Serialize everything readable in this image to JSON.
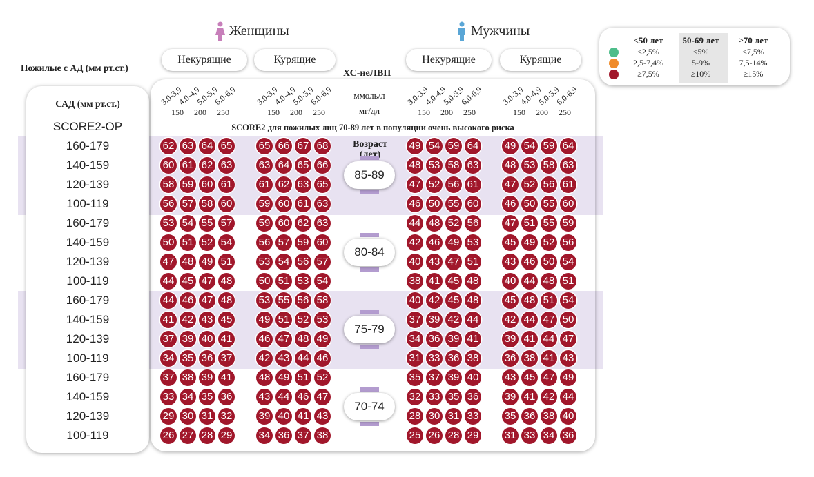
{
  "sex_labels": {
    "women": "Женщины",
    "men": "Мужчины"
  },
  "group_labels": {
    "nonsmoking": "Некурящие",
    "smoking": "Курящие"
  },
  "left_title": "Пожилые с АД (мм рт.ст.)",
  "left_header": "САД (мм рт.ст.)",
  "score_label": "SCORE2-OP",
  "chol_title": "ХС-неЛВП",
  "units": {
    "mmol": "ммоль/л",
    "mgdl": "мг/дл"
  },
  "chol_ticks": [
    "3,0-3,9",
    "4,0-4,9",
    "5,0-5,9",
    "6,0-6,9"
  ],
  "mgdl_ticks": [
    "150",
    "200",
    "250"
  ],
  "subtitle": "SCORE2 для пожилых лиц 70-89 лет в популяции очень высокого риска",
  "age_header": "Возраст\n(лет)",
  "legend": {
    "headers": [
      "<50 лет",
      "50-69 лет",
      "≥70 лет"
    ],
    "rows": [
      {
        "color": "#4dbd8a",
        "values": [
          "<2,5%",
          "<5%",
          "<7,5%"
        ]
      },
      {
        "color": "#f08c2b",
        "values": [
          "2,5-7,4%",
          "5-9%",
          "7,5-14%"
        ]
      },
      {
        "color": "#a1172b",
        "values": [
          "≥7,5%",
          "≥10%",
          "≥15%"
        ]
      }
    ]
  },
  "colors": {
    "risk_high": "#a1172b",
    "band": "#e5dff0",
    "female_icon": "#c77fba",
    "male_icon": "#5aa6d6"
  },
  "chart_data": {
    "type": "heatmap",
    "title": "SCORE2 для пожилых лиц 70-89 лет в популяции очень высокого риска",
    "x_groups": [
      "Женщины Некурящие",
      "Женщины Курящие",
      "Мужчины Некурящие",
      "Мужчины Курящие"
    ],
    "x_categories": [
      "3,0-3,9",
      "4,0-4,9",
      "5,0-5,9",
      "6,0-6,9"
    ],
    "age_groups": [
      {
        "age": "85-89",
        "sbp_rows": [
          "160-179",
          "140-159",
          "120-139",
          "100-119"
        ],
        "values": [
          [
            [
              62,
              63,
              64,
              65
            ],
            [
              65,
              66,
              67,
              68
            ],
            [
              49,
              54,
              59,
              64
            ],
            [
              49,
              54,
              59,
              64
            ]
          ],
          [
            [
              60,
              61,
              62,
              63
            ],
            [
              63,
              64,
              65,
              66
            ],
            [
              48,
              53,
              58,
              63
            ],
            [
              48,
              53,
              58,
              63
            ]
          ],
          [
            [
              58,
              59,
              60,
              61
            ],
            [
              61,
              62,
              63,
              65
            ],
            [
              47,
              52,
              56,
              61
            ],
            [
              47,
              52,
              56,
              61
            ]
          ],
          [
            [
              56,
              57,
              58,
              60
            ],
            [
              59,
              60,
              61,
              63
            ],
            [
              46,
              50,
              55,
              60
            ],
            [
              46,
              50,
              55,
              60
            ]
          ]
        ]
      },
      {
        "age": "80-84",
        "sbp_rows": [
          "160-179",
          "140-159",
          "120-139",
          "100-119"
        ],
        "values": [
          [
            [
              53,
              54,
              55,
              57
            ],
            [
              59,
              60,
              62,
              63
            ],
            [
              44,
              48,
              52,
              56
            ],
            [
              47,
              51,
              55,
              59
            ]
          ],
          [
            [
              50,
              51,
              52,
              54
            ],
            [
              56,
              57,
              59,
              60
            ],
            [
              42,
              46,
              49,
              53
            ],
            [
              45,
              49,
              52,
              56
            ]
          ],
          [
            [
              47,
              48,
              49,
              51
            ],
            [
              53,
              54,
              56,
              57
            ],
            [
              40,
              43,
              47,
              51
            ],
            [
              43,
              46,
              50,
              54
            ]
          ],
          [
            [
              44,
              45,
              47,
              48
            ],
            [
              50,
              51,
              53,
              54
            ],
            [
              38,
              41,
              45,
              48
            ],
            [
              40,
              44,
              48,
              51
            ]
          ]
        ]
      },
      {
        "age": "75-79",
        "sbp_rows": [
          "160-179",
          "140-159",
          "120-139",
          "100-119"
        ],
        "values": [
          [
            [
              44,
              46,
              47,
              48
            ],
            [
              53,
              55,
              56,
              58
            ],
            [
              40,
              42,
              45,
              48
            ],
            [
              45,
              48,
              51,
              54
            ]
          ],
          [
            [
              41,
              42,
              43,
              45
            ],
            [
              49,
              51,
              52,
              53
            ],
            [
              37,
              39,
              42,
              44
            ],
            [
              42,
              44,
              47,
              50
            ]
          ],
          [
            [
              37,
              39,
              40,
              41
            ],
            [
              46,
              47,
              48,
              49
            ],
            [
              34,
              36,
              39,
              41
            ],
            [
              39,
              41,
              44,
              47
            ]
          ],
          [
            [
              34,
              35,
              36,
              37
            ],
            [
              42,
              43,
              44,
              46
            ],
            [
              31,
              33,
              36,
              38
            ],
            [
              36,
              38,
              41,
              43
            ]
          ]
        ]
      },
      {
        "age": "70-74",
        "sbp_rows": [
          "160-179",
          "140-159",
          "120-139",
          "100-119"
        ],
        "values": [
          [
            [
              37,
              38,
              39,
              41
            ],
            [
              48,
              49,
              51,
              52
            ],
            [
              35,
              37,
              39,
              40
            ],
            [
              43,
              45,
              47,
              49
            ]
          ],
          [
            [
              33,
              34,
              35,
              36
            ],
            [
              43,
              44,
              46,
              47
            ],
            [
              32,
              33,
              35,
              36
            ],
            [
              39,
              41,
              42,
              44
            ]
          ],
          [
            [
              29,
              30,
              31,
              32
            ],
            [
              39,
              40,
              41,
              43
            ],
            [
              28,
              30,
              31,
              33
            ],
            [
              35,
              36,
              38,
              40
            ]
          ],
          [
            [
              26,
              27,
              28,
              29
            ],
            [
              34,
              36,
              37,
              38
            ],
            [
              25,
              26,
              28,
              29
            ],
            [
              31,
              33,
              34,
              36
            ]
          ]
        ]
      }
    ]
  }
}
